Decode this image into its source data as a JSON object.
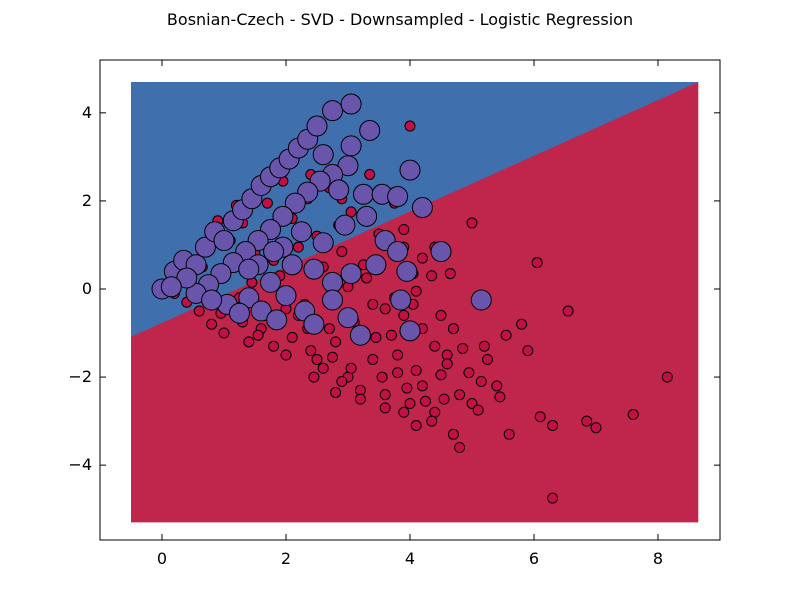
{
  "title": "Bosnian-Czech - SVD - Downsampled - Logistic Regression",
  "chart_data": {
    "type": "scatter",
    "title": "Bosnian-Czech - SVD - Downsampled - Logistic Regression",
    "xlabel": "",
    "ylabel": "",
    "xlim": [
      -1,
      9
    ],
    "ylim": [
      -5.7,
      5.2
    ],
    "xticks": [
      0,
      2,
      4,
      6,
      8
    ],
    "yticks": [
      -4,
      -2,
      0,
      2,
      4
    ],
    "xtick_labels": [
      "0",
      "2",
      "4",
      "6",
      "8"
    ],
    "ytick_labels": [
      "−4",
      "−2",
      "0",
      "2",
      "4"
    ],
    "grid": false,
    "legend": "none",
    "decision_regions": {
      "x_range": [
        -0.5,
        8.65
      ],
      "y_range": [
        -5.3,
        4.7
      ],
      "boundary": {
        "slope": 0.505,
        "intercept": -0.835
      },
      "upper_color": "#3f6fad",
      "lower_color": "#c0254b"
    },
    "series": [
      {
        "color": "#c20f45",
        "marker_size": "small",
        "points": [
          [
            0.05,
            0.05
          ],
          [
            0.2,
            -0.1
          ],
          [
            0.4,
            -0.3
          ],
          [
            0.6,
            -0.5
          ],
          [
            0.8,
            -0.8
          ],
          [
            1.0,
            -1.0
          ],
          [
            1.2,
            -0.4
          ],
          [
            1.4,
            -1.2
          ],
          [
            1.6,
            -0.9
          ],
          [
            1.8,
            -1.3
          ],
          [
            2.0,
            -1.5
          ],
          [
            2.2,
            -0.6
          ],
          [
            2.4,
            -1.4
          ],
          [
            2.6,
            -1.8
          ],
          [
            2.8,
            -1.2
          ],
          [
            3.0,
            -2.0
          ],
          [
            3.2,
            -2.3
          ],
          [
            3.4,
            -1.6
          ],
          [
            3.6,
            -2.4
          ],
          [
            3.8,
            -1.9
          ],
          [
            4.0,
            -2.6
          ],
          [
            4.2,
            -2.2
          ],
          [
            4.4,
            -2.8
          ],
          [
            4.6,
            -1.5
          ],
          [
            4.8,
            -2.4
          ],
          [
            5.0,
            -2.6
          ],
          [
            5.2,
            -1.3
          ],
          [
            5.4,
            -2.2
          ],
          [
            5.6,
            -3.3
          ],
          [
            5.8,
            -0.8
          ],
          [
            5.9,
            -1.4
          ],
          [
            6.05,
            0.6
          ],
          [
            6.1,
            -2.9
          ],
          [
            6.3,
            -3.1
          ],
          [
            6.3,
            -4.75
          ],
          [
            6.55,
            -0.5
          ],
          [
            6.85,
            -3.0
          ],
          [
            7.0,
            -3.15
          ],
          [
            7.6,
            -2.85
          ],
          [
            8.15,
            -2.0
          ],
          [
            4.0,
            3.7
          ],
          [
            3.35,
            2.6
          ],
          [
            2.9,
            2.05
          ],
          [
            3.75,
            1.95
          ],
          [
            3.9,
            1.35
          ],
          [
            4.4,
            0.95
          ],
          [
            4.2,
            0.7
          ],
          [
            4.35,
            0.3
          ],
          [
            4.65,
            0.35
          ],
          [
            5.0,
            1.5
          ],
          [
            4.1,
            -0.05
          ],
          [
            3.6,
            -0.45
          ],
          [
            3.9,
            -0.6
          ],
          [
            4.2,
            -0.9
          ],
          [
            4.5,
            -0.6
          ],
          [
            4.7,
            -0.9
          ],
          [
            3.1,
            -0.75
          ],
          [
            2.7,
            -0.9
          ],
          [
            2.3,
            -0.35
          ],
          [
            1.9,
            0.3
          ],
          [
            1.5,
            0.8
          ],
          [
            1.1,
            1.1
          ],
          [
            1.3,
            1.5
          ],
          [
            1.7,
            1.95
          ],
          [
            2.1,
            1.6
          ],
          [
            2.5,
            1.2
          ],
          [
            2.9,
            0.85
          ],
          [
            3.3,
            0.25
          ],
          [
            3.45,
            -1.1
          ],
          [
            3.8,
            -1.5
          ],
          [
            4.1,
            -1.85
          ],
          [
            4.5,
            -1.95
          ],
          [
            4.35,
            -3.0
          ],
          [
            4.7,
            -3.3
          ],
          [
            4.8,
            -3.6
          ],
          [
            4.1,
            -3.1
          ],
          [
            3.9,
            -2.8
          ],
          [
            3.2,
            -2.5
          ],
          [
            2.9,
            -2.1
          ],
          [
            2.5,
            -1.6
          ],
          [
            2.1,
            -1.1
          ],
          [
            1.65,
            -0.6
          ],
          [
            1.25,
            -0.2
          ],
          [
            0.85,
            0.2
          ],
          [
            0.65,
            0.5
          ],
          [
            0.3,
            0.3
          ],
          [
            5.1,
            -2.75
          ],
          [
            5.25,
            -1.6
          ],
          [
            5.45,
            -2.45
          ],
          [
            5.55,
            -1.05
          ],
          [
            4.4,
            -1.3
          ],
          [
            4.6,
            -1.7
          ],
          [
            4.85,
            -1.35
          ],
          [
            3.55,
            -2.0
          ],
          [
            3.7,
            -1.05
          ],
          [
            2.0,
            -0.45
          ],
          [
            2.35,
            -0.9
          ],
          [
            2.75,
            -1.55
          ],
          [
            3.05,
            -1.8
          ],
          [
            1.45,
            0.15
          ],
          [
            1.8,
            0.65
          ],
          [
            2.2,
            0.95
          ],
          [
            2.6,
            0.5
          ],
          [
            3.0,
            0.05
          ],
          [
            3.4,
            -0.35
          ],
          [
            0.95,
            -0.55
          ],
          [
            1.3,
            -0.75
          ],
          [
            1.55,
            -1.05
          ],
          [
            2.45,
            -2.0
          ],
          [
            2.8,
            -2.35
          ],
          [
            3.6,
            -2.7
          ],
          [
            3.95,
            -2.25
          ],
          [
            4.25,
            -2.55
          ],
          [
            4.55,
            -2.5
          ],
          [
            4.95,
            -1.9
          ],
          [
            5.15,
            -2.1
          ],
          [
            4.05,
            -0.35
          ],
          [
            3.75,
            -0.2
          ],
          [
            3.25,
            0.55
          ],
          [
            2.85,
            1.45
          ],
          [
            2.35,
            2.05
          ],
          [
            1.95,
            2.45
          ],
          [
            1.6,
            2.25
          ],
          [
            1.2,
            1.9
          ],
          [
            0.9,
            1.55
          ],
          [
            2.0,
            2.85
          ],
          [
            2.4,
            2.6
          ],
          [
            2.7,
            2.3
          ],
          [
            3.05,
            1.75
          ],
          [
            3.5,
            1.25
          ],
          [
            3.9,
            0.95
          ],
          [
            4.05,
            0.35
          ]
        ]
      },
      {
        "color": "#6a55ad",
        "marker_size": "large",
        "points": [
          [
            0.0,
            0.0
          ],
          [
            0.2,
            0.4
          ],
          [
            0.35,
            0.65
          ],
          [
            0.55,
            0.55
          ],
          [
            0.7,
            0.95
          ],
          [
            0.85,
            1.3
          ],
          [
            1.0,
            1.1
          ],
          [
            1.15,
            1.55
          ],
          [
            1.3,
            1.8
          ],
          [
            1.45,
            2.05
          ],
          [
            1.6,
            2.35
          ],
          [
            1.75,
            2.55
          ],
          [
            1.9,
            2.75
          ],
          [
            2.05,
            2.95
          ],
          [
            2.2,
            3.2
          ],
          [
            2.35,
            3.4
          ],
          [
            2.5,
            3.7
          ],
          [
            2.75,
            4.05
          ],
          [
            3.05,
            4.2
          ],
          [
            3.35,
            3.6
          ],
          [
            3.05,
            3.25
          ],
          [
            3.0,
            2.8
          ],
          [
            2.75,
            2.6
          ],
          [
            2.55,
            2.45
          ],
          [
            2.35,
            2.2
          ],
          [
            2.15,
            1.95
          ],
          [
            1.95,
            1.65
          ],
          [
            1.75,
            1.35
          ],
          [
            1.55,
            1.1
          ],
          [
            1.35,
            0.85
          ],
          [
            1.15,
            0.6
          ],
          [
            0.95,
            0.35
          ],
          [
            0.75,
            0.1
          ],
          [
            0.55,
            -0.1
          ],
          [
            1.55,
            0.55
          ],
          [
            1.95,
            0.95
          ],
          [
            2.25,
            1.3
          ],
          [
            2.6,
            1.05
          ],
          [
            2.95,
            1.45
          ],
          [
            3.25,
            2.15
          ],
          [
            3.55,
            2.15
          ],
          [
            3.8,
            2.1
          ],
          [
            3.3,
            1.65
          ],
          [
            3.6,
            1.1
          ],
          [
            3.8,
            0.85
          ],
          [
            3.95,
            0.4
          ],
          [
            3.45,
            0.55
          ],
          [
            3.05,
            0.35
          ],
          [
            2.75,
            0.15
          ],
          [
            2.45,
            0.45
          ],
          [
            2.1,
            0.55
          ],
          [
            1.75,
            0.15
          ],
          [
            1.4,
            -0.2
          ],
          [
            1.05,
            -0.35
          ],
          [
            1.6,
            -0.5
          ],
          [
            2.0,
            -0.15
          ],
          [
            2.3,
            -0.5
          ],
          [
            2.75,
            -0.25
          ],
          [
            3.0,
            -0.65
          ],
          [
            3.2,
            -1.05
          ],
          [
            2.45,
            -0.8
          ],
          [
            1.85,
            -0.7
          ],
          [
            1.25,
            -0.55
          ],
          [
            0.8,
            -0.25
          ],
          [
            3.85,
            -0.25
          ],
          [
            4.0,
            -0.95
          ],
          [
            4.5,
            0.85
          ],
          [
            5.15,
            -0.25
          ],
          [
            4.0,
            2.7
          ],
          [
            4.2,
            1.85
          ],
          [
            2.6,
            3.05
          ],
          [
            2.85,
            2.25
          ],
          [
            1.4,
            0.45
          ],
          [
            1.8,
            0.85
          ],
          [
            0.4,
            0.25
          ],
          [
            0.15,
            0.05
          ]
        ]
      }
    ]
  }
}
